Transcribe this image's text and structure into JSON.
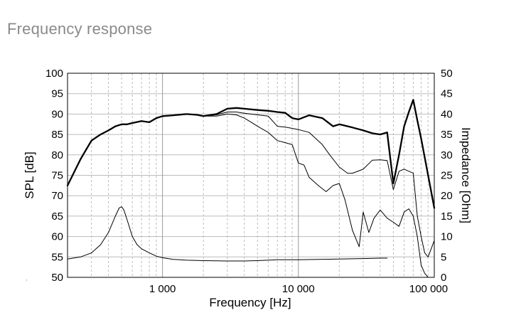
{
  "page": {
    "heading": "Frequency response"
  },
  "chart_data": {
    "type": "line",
    "xlabel": "Frequency [Hz]",
    "ylabel": "SPL [dB]",
    "y2label": "Impedance [Ohm]",
    "xscale": "log",
    "xlim": [
      200,
      100000
    ],
    "ylim": [
      50,
      100
    ],
    "y2lim": [
      0,
      50
    ],
    "grid": true,
    "xtick_labels": [
      {
        "value": 1000,
        "label": "1 000"
      },
      {
        "value": 10000,
        "label": "10 000"
      },
      {
        "value": 100000,
        "label": "100 000"
      }
    ],
    "yticks": [
      50,
      55,
      60,
      65,
      70,
      75,
      80,
      85,
      90,
      95,
      100
    ],
    "y2ticks": [
      0,
      5,
      10,
      15,
      20,
      25,
      30,
      35,
      40,
      45,
      50
    ],
    "series": [
      {
        "axis": "left",
        "width": 2.3,
        "x": [
          200,
          250,
          300,
          350,
          400,
          450,
          500,
          550,
          600,
          700,
          800,
          900,
          1000,
          1200,
          1500,
          1800,
          2000,
          2500,
          3000,
          3500,
          4000,
          5000,
          6000,
          7000,
          8000,
          9000,
          10000,
          12000,
          15000,
          18000,
          20000,
          25000,
          30000,
          35000,
          40000,
          45000,
          50000,
          55000,
          60000,
          65000,
          70000,
          75000,
          80000,
          90000,
          100000
        ],
        "values": [
          72.5,
          79,
          83.5,
          85,
          86,
          87,
          87.5,
          87.5,
          87.8,
          88.3,
          88,
          89,
          89.5,
          89.7,
          90,
          89.8,
          89.5,
          90,
          91.3,
          91.5,
          91.3,
          91,
          90.8,
          90.5,
          90.3,
          89,
          88.7,
          89.7,
          89,
          87,
          87.5,
          86.7,
          86,
          85.3,
          85,
          85.5,
          73,
          80,
          87,
          90.5,
          93.5,
          88.5,
          84,
          75,
          67
        ]
      },
      {
        "axis": "left",
        "width": 1,
        "x": [
          2000,
          2500,
          3000,
          3500,
          4000,
          4500,
          5000,
          6000,
          7000,
          8000,
          9000,
          10000,
          12000,
          15000,
          17000,
          20000,
          23000,
          25000,
          30000,
          35000,
          40000,
          45000,
          50000,
          55000,
          60000,
          70000,
          75000,
          80000,
          85000,
          90000,
          100000
        ],
        "values": [
          89.5,
          89.8,
          90.5,
          90.5,
          90.2,
          90,
          89.8,
          89.5,
          87,
          86.8,
          86.5,
          86.2,
          85.5,
          82.5,
          80,
          77,
          75.5,
          75.5,
          76.5,
          78.7,
          78.8,
          78.6,
          71.5,
          76,
          76.5,
          75.5,
          65,
          60,
          56,
          55,
          59
        ]
      },
      {
        "axis": "left",
        "width": 1,
        "x": [
          2000,
          2500,
          3000,
          3500,
          4000,
          4500,
          5000,
          6000,
          7000,
          8000,
          9000,
          10000,
          11000,
          12000,
          14000,
          16000,
          18000,
          20000,
          22000,
          25000,
          28000,
          30000,
          33000,
          36000,
          40000,
          45000,
          50000,
          55000,
          60000,
          65000,
          70000,
          75000,
          80000,
          85000,
          90000,
          95000
        ],
        "values": [
          89.5,
          89.5,
          90,
          89.8,
          89,
          88,
          87,
          85.5,
          83.5,
          83,
          82.5,
          78,
          77.5,
          74.5,
          72.5,
          71,
          72.5,
          73,
          69,
          61.5,
          57.5,
          66,
          61,
          64.5,
          66.5,
          64.5,
          63.5,
          62.5,
          66,
          66.8,
          65,
          60,
          53,
          51,
          50,
          50
        ]
      },
      {
        "axis": "right",
        "width": 1,
        "x": [
          200,
          250,
          300,
          350,
          400,
          450,
          480,
          500,
          520,
          550,
          600,
          650,
          700,
          800,
          900,
          1000,
          1200,
          1500,
          2000,
          3000,
          4000,
          5000,
          7000,
          10000,
          20000,
          30000,
          40000,
          45000
        ],
        "values": [
          4.5,
          5,
          6,
          8,
          11,
          15,
          17,
          17.3,
          16.5,
          14,
          10,
          8,
          7,
          6,
          5.2,
          4.8,
          4.4,
          4.2,
          4.1,
          4,
          4,
          4.1,
          4.3,
          4.3,
          4.5,
          4.6,
          4.7,
          4.7
        ]
      }
    ]
  }
}
